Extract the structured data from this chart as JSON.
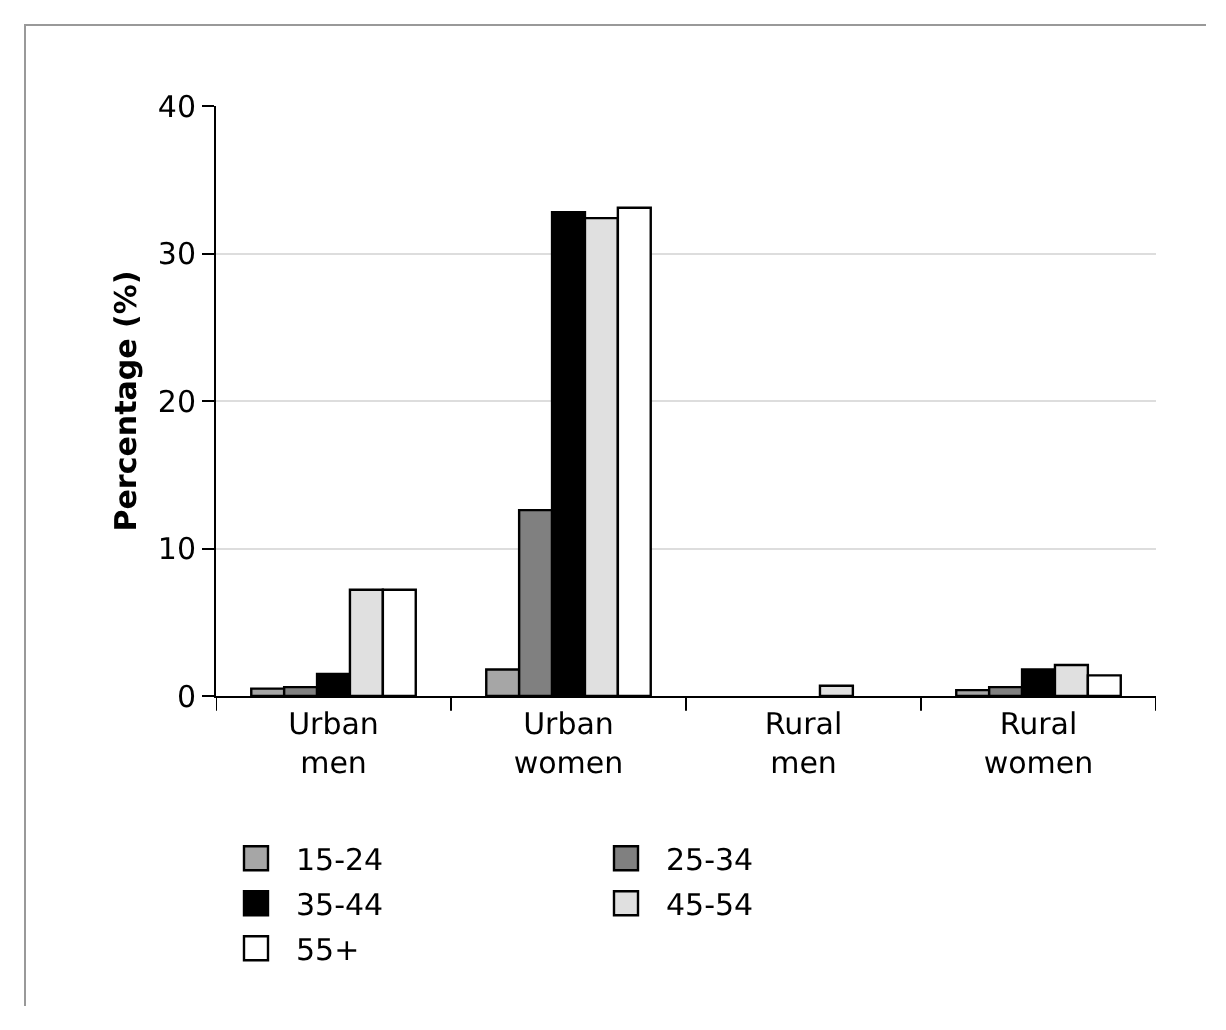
{
  "chart_data": {
    "type": "bar",
    "ylabel": "Percentage (%)",
    "categories": [
      "Urban men",
      "Urban women",
      "Rural men",
      "Rural women"
    ],
    "series": [
      {
        "name": "15-24",
        "color": "#a6a6a6",
        "values": [
          0.5,
          1.8,
          null,
          0.4
        ]
      },
      {
        "name": "25-34",
        "color": "#808080",
        "values": [
          0.6,
          12.6,
          null,
          0.6
        ]
      },
      {
        "name": "35-44",
        "color": "#000000",
        "values": [
          1.5,
          32.8,
          null,
          1.8
        ]
      },
      {
        "name": "45-54",
        "color": "#e0e0e0",
        "values": [
          7.2,
          32.4,
          0.7,
          2.1
        ]
      },
      {
        "name": "55+",
        "color": "#ffffff",
        "values": [
          7.2,
          33.1,
          null,
          1.4
        ]
      }
    ],
    "ylim": [
      0,
      40
    ],
    "yticks": [
      0,
      10,
      20,
      30,
      40
    ],
    "grid": "y",
    "legend": "bottom"
  }
}
